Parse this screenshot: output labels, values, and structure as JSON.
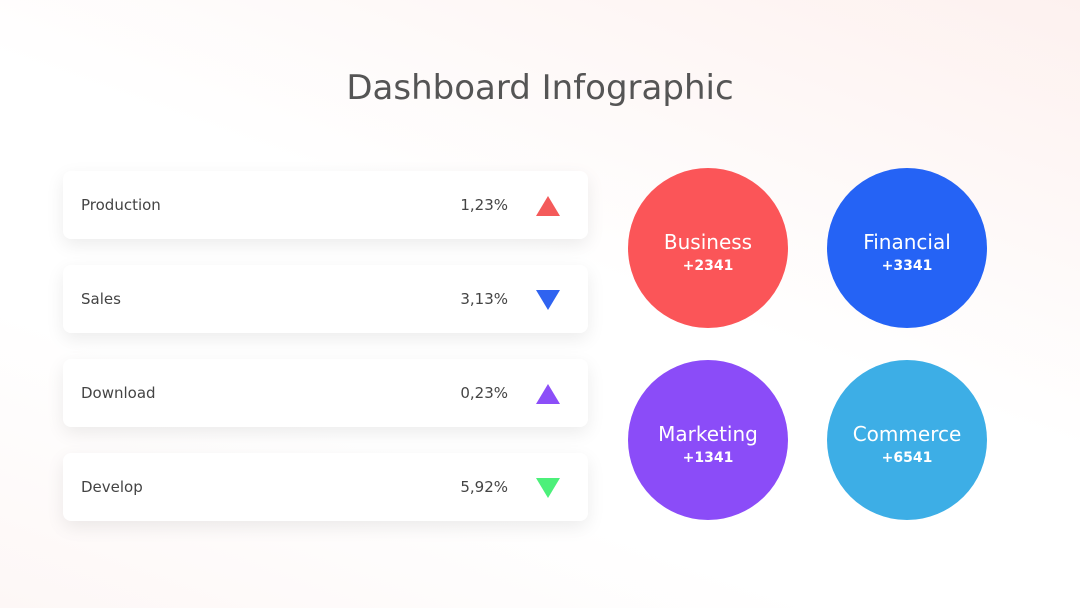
{
  "title": "Dashboard Infographic",
  "metrics": [
    {
      "label": "Production",
      "value": "1,23%",
      "trend": "up",
      "color": "#f45a5a"
    },
    {
      "label": "Sales",
      "value": "3,13%",
      "trend": "down",
      "color": "#2f63f0"
    },
    {
      "label": "Download",
      "value": "0,23%",
      "trend": "up",
      "color": "#8c4ef8"
    },
    {
      "label": "Develop",
      "value": "5,92%",
      "trend": "down",
      "color": "#4cf07a"
    }
  ],
  "circles": [
    {
      "label": "Business",
      "value": "+2341",
      "color": "#fb5558"
    },
    {
      "label": "Financial",
      "value": "+3341",
      "color": "#2563f5"
    },
    {
      "label": "Marketing",
      "value": "+1341",
      "color": "#8b4cf8"
    },
    {
      "label": "Commerce",
      "value": "+6541",
      "color": "#3daee6"
    }
  ]
}
